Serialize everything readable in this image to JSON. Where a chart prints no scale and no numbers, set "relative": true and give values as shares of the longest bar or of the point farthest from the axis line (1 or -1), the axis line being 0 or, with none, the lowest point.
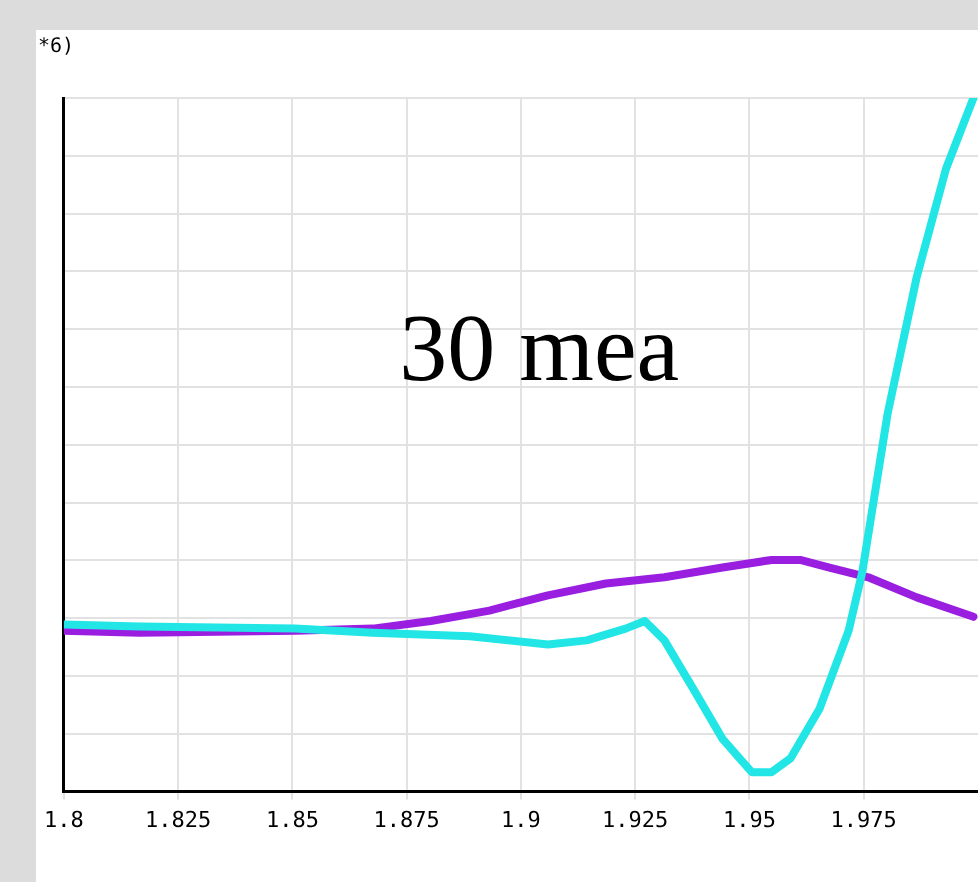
{
  "chart_data": {
    "type": "line",
    "relative": true,
    "grid": true,
    "legend": false,
    "marker": "none",
    "line_style": "solid",
    "xlim": [
      1.8,
      2.0
    ],
    "xticks": [
      1.8,
      1.825,
      1.85,
      1.875,
      1.9,
      1.925,
      1.95,
      1.975
    ],
    "annotations": [
      "30 mea",
      "*6)"
    ],
    "series": [
      {
        "color": "#22e5e5",
        "x": [
          1.8,
          1.8166,
          1.8506,
          1.8676,
          1.8888,
          1.9059,
          1.9144,
          1.9229,
          1.9271,
          1.9314,
          1.9378,
          1.9441,
          1.9505,
          1.9548,
          1.959,
          1.9653,
          1.9717,
          1.9747,
          1.9802,
          1.9866,
          1.993,
          1.999
        ],
        "values": [
          0.241,
          0.238,
          0.235,
          0.229,
          0.224,
          0.212,
          0.218,
          0.235,
          0.246,
          0.218,
          0.147,
          0.076,
          0.028,
          0.028,
          0.048,
          0.119,
          0.232,
          0.317,
          0.544,
          0.742,
          0.898,
          1.0
        ]
      },
      {
        "color": "#9a1ee0",
        "x": [
          1.8,
          1.8166,
          1.8506,
          1.8676,
          1.8803,
          1.8931,
          1.9059,
          1.9186,
          1.9314,
          1.9441,
          1.9548,
          1.9611,
          1.9675,
          1.976,
          1.9866,
          1.999
        ],
        "values": [
          0.232,
          0.229,
          0.232,
          0.235,
          0.246,
          0.261,
          0.283,
          0.3,
          0.309,
          0.323,
          0.334,
          0.334,
          0.323,
          0.309,
          0.28,
          0.252
        ]
      }
    ]
  }
}
